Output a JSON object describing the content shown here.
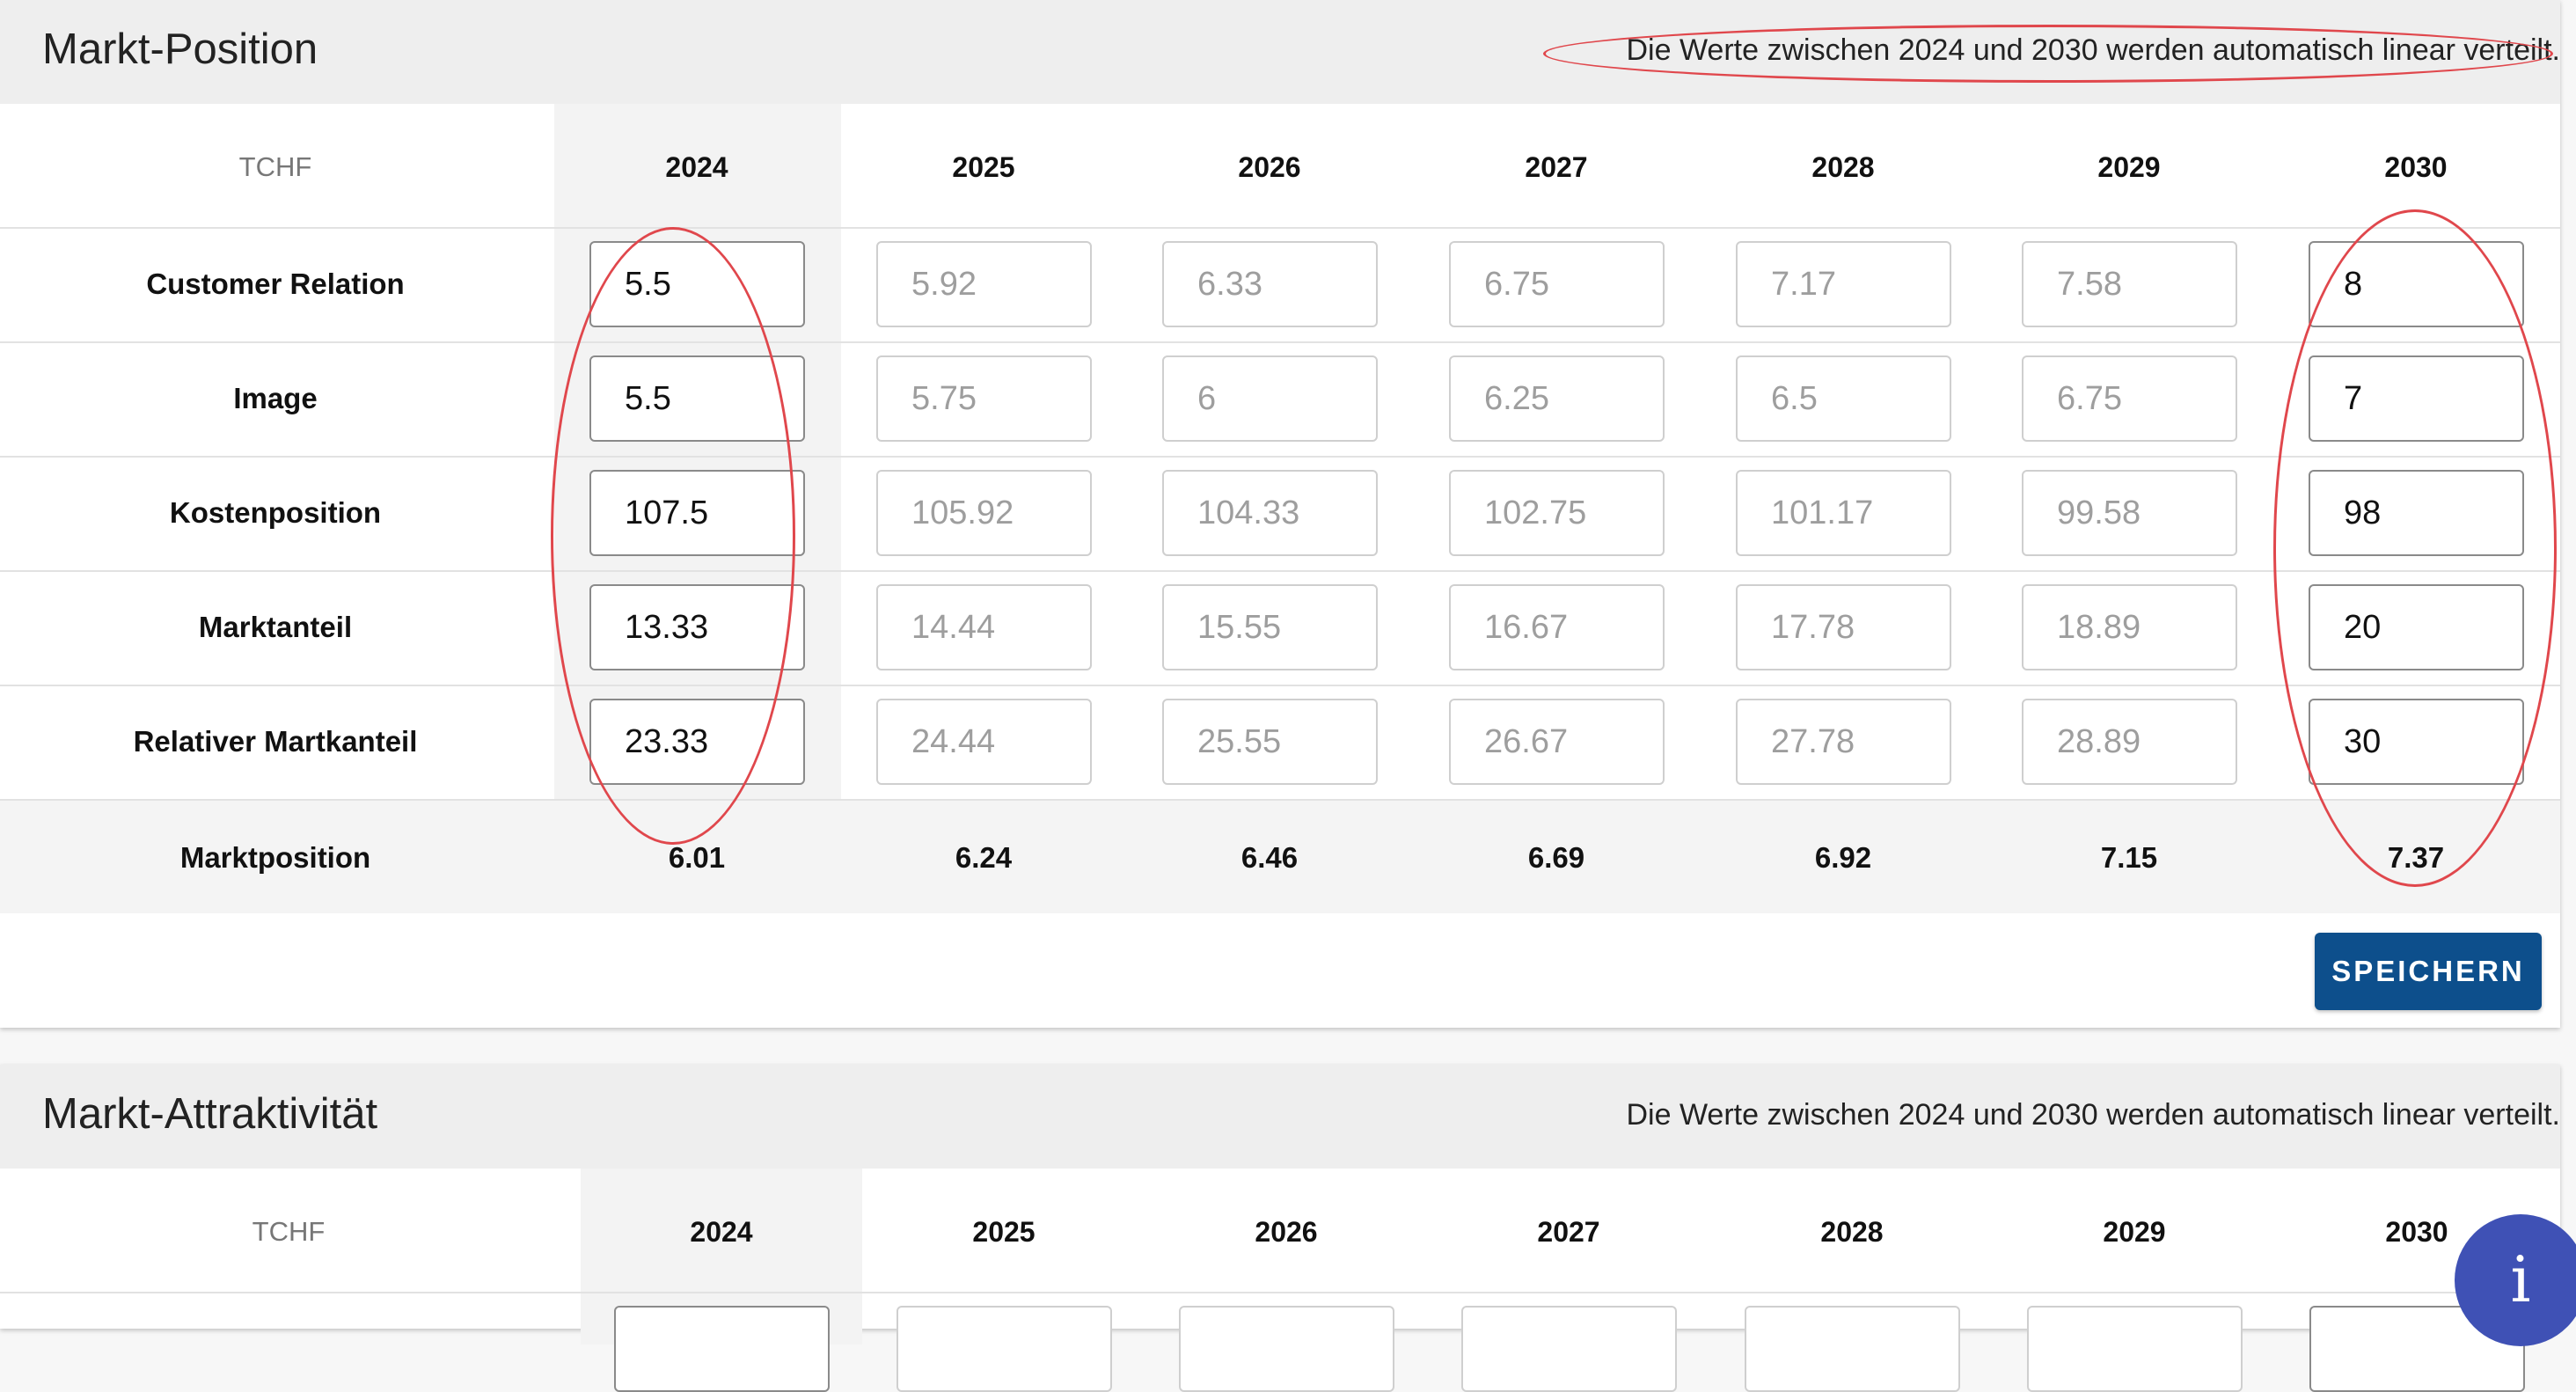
{
  "market_position": {
    "title": "Markt-Position",
    "note": "Die Werte zwischen 2024 und 2030 werden automatisch linear verteilt.",
    "unit": "TCHF",
    "years": [
      "2024",
      "2025",
      "2026",
      "2027",
      "2028",
      "2029",
      "2030"
    ],
    "rows": [
      {
        "label": "Customer Relation",
        "values": [
          "5.5",
          "5.92",
          "6.33",
          "6.75",
          "7.17",
          "7.58",
          "8"
        ]
      },
      {
        "label": "Image",
        "values": [
          "5.5",
          "5.75",
          "6",
          "6.25",
          "6.5",
          "6.75",
          "7"
        ]
      },
      {
        "label": "Kostenposition",
        "values": [
          "107.5",
          "105.92",
          "104.33",
          "102.75",
          "101.17",
          "99.58",
          "98"
        ]
      },
      {
        "label": "Marktanteil",
        "values": [
          "13.33",
          "14.44",
          "15.55",
          "16.67",
          "17.78",
          "18.89",
          "20"
        ]
      },
      {
        "label": "Relativer Martkanteil",
        "values": [
          "23.33",
          "24.44",
          "25.55",
          "26.67",
          "27.78",
          "28.89",
          "30"
        ]
      }
    ],
    "total": {
      "label": "Marktposition",
      "values": [
        "6.01",
        "6.24",
        "6.46",
        "6.69",
        "6.92",
        "7.15",
        "7.37"
      ]
    },
    "save_label": "SPEICHERN"
  },
  "market_attractiveness": {
    "title": "Markt-Attraktivität",
    "note": "Die Werte zwischen 2024 und 2030 werden automatisch linear verteilt.",
    "unit": "TCHF",
    "years": [
      "2024",
      "2025",
      "2026",
      "2027",
      "2028",
      "2029",
      "2030"
    ]
  },
  "info_button": {
    "label": "i",
    "icon": "info-icon"
  },
  "colors": {
    "primary": "#0d4f8c",
    "annotation": "#e0474c",
    "fab": "#3f51b5"
  }
}
